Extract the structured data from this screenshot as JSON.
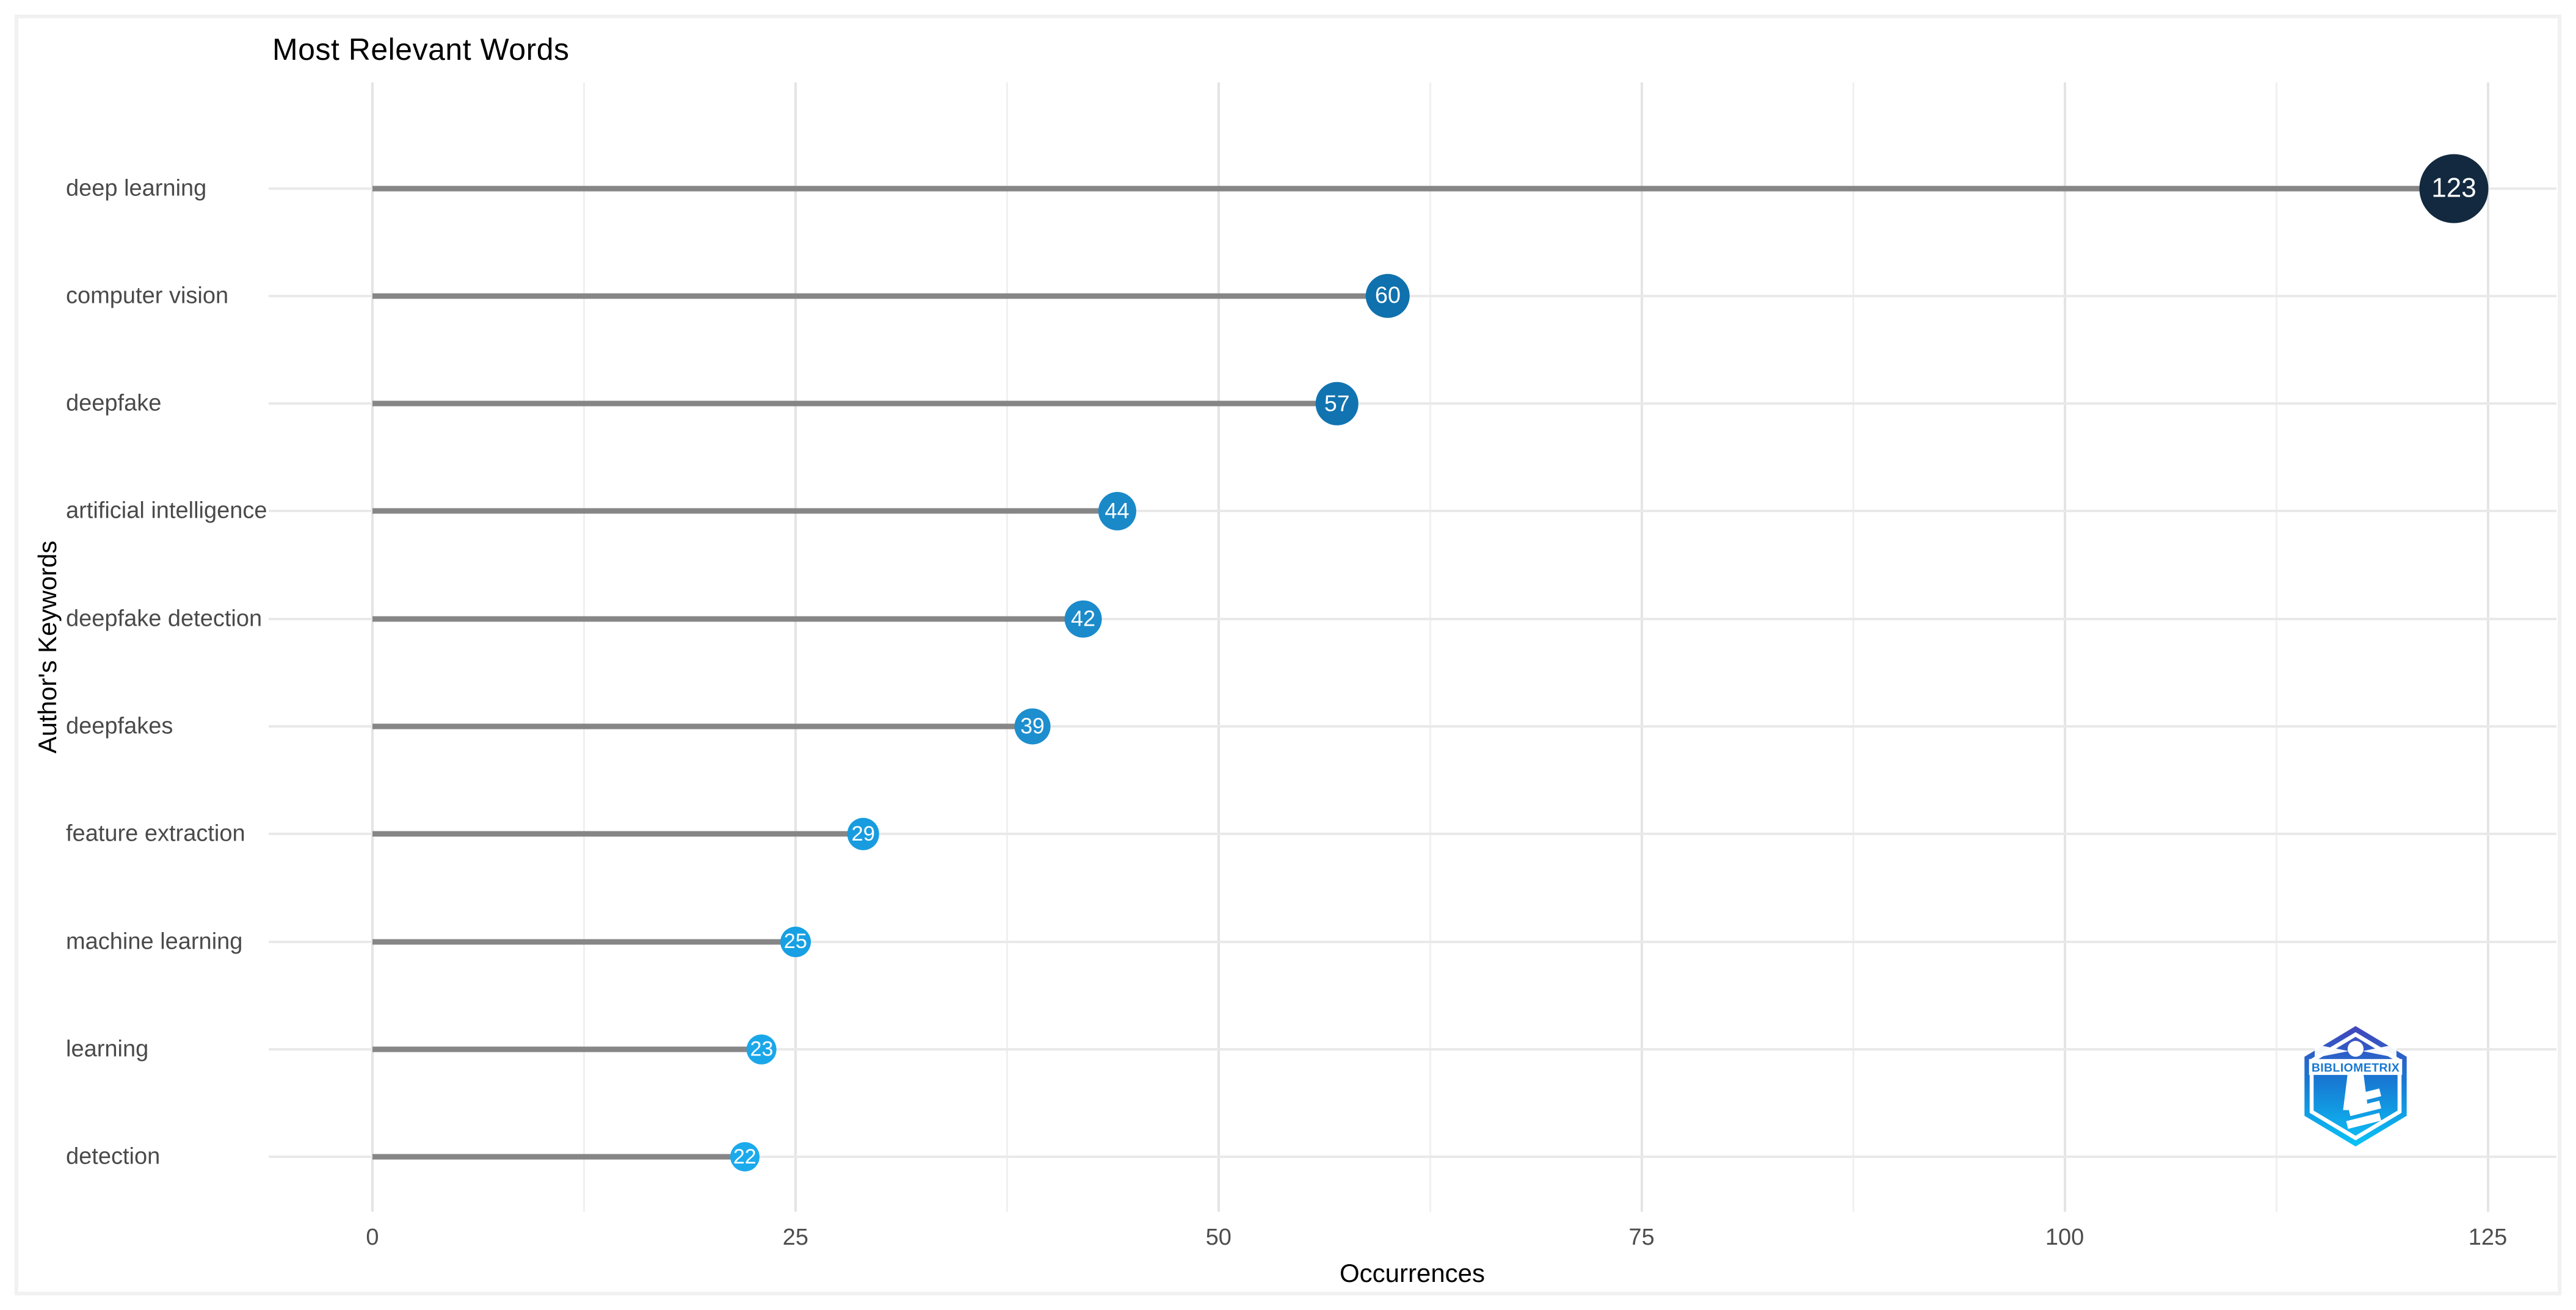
{
  "chart_data": {
    "type": "scatter",
    "variant": "lollipop",
    "title": "Most Relevant Words",
    "xlabel": "Occurrences",
    "ylabel": "Author's Keywords",
    "xlim": [
      0,
      125
    ],
    "x_ticks": [
      0,
      25,
      50,
      75,
      100,
      125
    ],
    "grid": true,
    "legend": "none",
    "categories": [
      "deep learning",
      "computer vision",
      "deepfake",
      "artificial intelligence",
      "deepfake detection",
      "deepfakes",
      "feature extraction",
      "machine learning",
      "learning",
      "detection"
    ],
    "values": [
      123,
      60,
      57,
      44,
      42,
      39,
      29,
      25,
      23,
      22
    ],
    "point_colors": [
      "#12293F",
      "#0F71AD",
      "#1174B0",
      "#1A89C8",
      "#1B8BCB",
      "#1D8ECE",
      "#189CDF",
      "#17A0E3",
      "#1AA7EA",
      "#1BAAEC"
    ],
    "stem_color": "#868686",
    "label_color": "#ffffff"
  },
  "logo": {
    "text": "BIBLIOMETRIX",
    "gradient_top": "#4345BC",
    "gradient_mid": "#1878D2",
    "gradient_bottom": "#0AC4F7"
  }
}
